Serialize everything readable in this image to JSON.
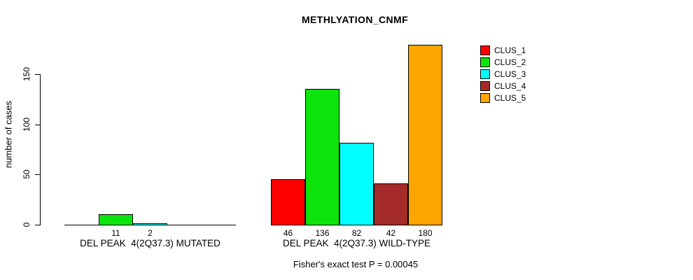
{
  "chart_data": {
    "type": "bar",
    "title": "METHLYATION_CNMF",
    "ylabel": "number of cases",
    "yticks": [
      0,
      50,
      100,
      150
    ],
    "ylim": [
      0,
      150
    ],
    "grid": false,
    "legend_position": "top-right",
    "categories": [
      "DEL PEAK  4(2Q37.3) MUTATED",
      "DEL PEAK  4(2Q37.3) WILD-TYPE"
    ],
    "series": [
      {
        "name": "CLUS_1",
        "color": "#fe0000",
        "values": [
          0,
          46
        ]
      },
      {
        "name": "CLUS_2",
        "color": "#0ce40c",
        "values": [
          11,
          136
        ]
      },
      {
        "name": "CLUS_3",
        "color": "#00ffff",
        "values": [
          2,
          82
        ]
      },
      {
        "name": "CLUS_4",
        "color": "#a52a2a",
        "values": [
          0,
          42
        ]
      },
      {
        "name": "CLUS_5",
        "color": "#ffa500",
        "values": [
          0,
          180
        ]
      }
    ],
    "bar_labels": {
      "note": "value printed under each drawn (non-zero) bar",
      "group_1": [
        "11",
        "2"
      ],
      "group_2": [
        "46",
        "136",
        "82",
        "42",
        "180"
      ]
    },
    "annotation": "Fisher's exact test P = 0.00045"
  }
}
